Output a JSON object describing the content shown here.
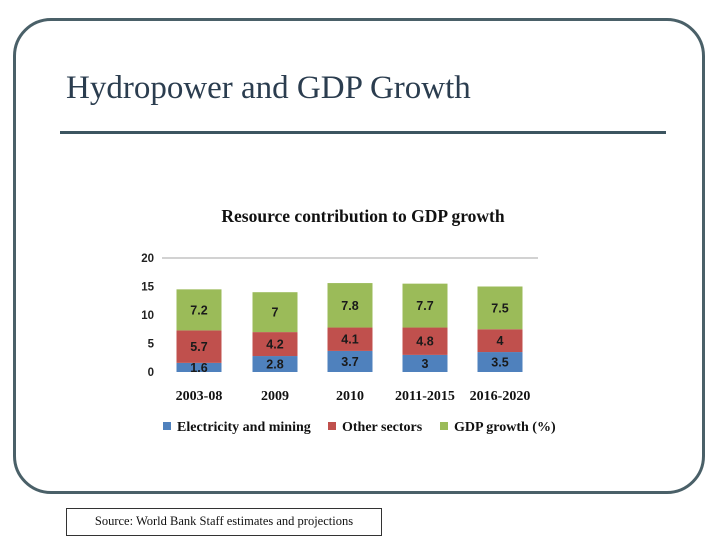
{
  "slide": {
    "title": "Hydropower and GDP Growth",
    "source": "Source: World Bank Staff estimates and projections"
  },
  "colors": {
    "electricity": "#4f81bd",
    "other": "#c0504d",
    "gdp": "#9bbb59",
    "gridline": "#a6a6a6",
    "frame": "#4a6068"
  },
  "chart_data": {
    "type": "bar",
    "stacked": true,
    "title": "Resource contribution to GDP growth",
    "categories": [
      "2003-08",
      "2009",
      "2010",
      "2011-2015",
      "2016-2020"
    ],
    "series": [
      {
        "name": "Electricity and mining",
        "values": [
          1.6,
          2.8,
          3.7,
          3,
          3.5
        ]
      },
      {
        "name": "Other sectors",
        "values": [
          5.7,
          4.2,
          4.1,
          4.8,
          4
        ]
      },
      {
        "name": "GDP growth (%)",
        "values": [
          7.2,
          7,
          7.8,
          7.7,
          7.5
        ]
      }
    ],
    "data_labels": [
      [
        "1.6",
        "2.8",
        "3.7",
        "3",
        "3.5"
      ],
      [
        "5.7",
        "4.2",
        "4.1",
        "4.8",
        "4"
      ],
      [
        "7.2",
        "7",
        "7.8",
        "7.7",
        "7.5"
      ]
    ],
    "yticks": [
      "0",
      "5",
      "10",
      "15",
      "20"
    ],
    "ylim": [
      0,
      20
    ],
    "xlabel": "",
    "ylabel": "",
    "grid": "top-line",
    "legend": "bottom"
  }
}
